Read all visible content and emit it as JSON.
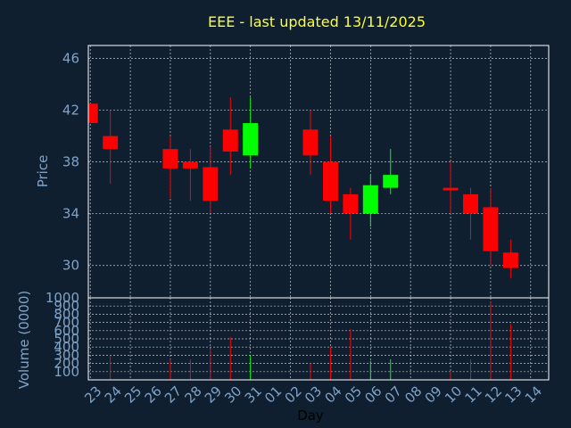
{
  "chart_data": {
    "type": "candlestick",
    "title": "EEE - last updated 13/11/2025",
    "xlabel": "Day",
    "colors": {
      "up": "#00ff00",
      "down": "#ff0000",
      "background": "#0f1f30",
      "title": "#ffff33",
      "tick": "#7fa3c8"
    },
    "x_tick_labels": [
      "23",
      "24",
      "25",
      "26",
      "27",
      "28",
      "29",
      "30",
      "31",
      "01",
      "02",
      "03",
      "04",
      "05",
      "06",
      "07",
      "08",
      "09",
      "10",
      "11",
      "12",
      "13",
      "14"
    ],
    "price_panel": {
      "ylabel": "Price",
      "ylim": [
        27.5,
        47
      ],
      "yticks": [
        30,
        34,
        38,
        42,
        46
      ],
      "grid": true
    },
    "volume_panel": {
      "ylabel": "Volume (0000)",
      "ylim": [
        0,
        1000
      ],
      "yticks": [
        100,
        200,
        300,
        400,
        500,
        600,
        700,
        800,
        900,
        1000
      ],
      "grid": true
    },
    "candles": [
      {
        "day": "23",
        "open": 42.5,
        "high": 42.5,
        "low": 41.0,
        "close": 41.0,
        "volume": 0
      },
      {
        "day": "24",
        "open": 40.0,
        "high": 42.0,
        "low": 36.3,
        "close": 39.0,
        "volume": 300
      },
      {
        "day": "27",
        "open": 39.0,
        "high": 40.0,
        "low": 35.2,
        "close": 37.5,
        "volume": 250
      },
      {
        "day": "28",
        "open": 38.0,
        "high": 39.0,
        "low": 35.0,
        "close": 37.5,
        "volume": 250
      },
      {
        "day": "29",
        "open": 37.6,
        "high": 39.2,
        "low": 34.0,
        "close": 35.0,
        "volume": 380
      },
      {
        "day": "30",
        "open": 40.5,
        "high": 43.0,
        "low": 37.0,
        "close": 38.8,
        "volume": 520
      },
      {
        "day": "31",
        "open": 38.5,
        "high": 43.0,
        "low": 37.5,
        "close": 41.0,
        "volume": 300
      },
      {
        "day": "03",
        "open": 40.5,
        "high": 42.0,
        "low": 37.0,
        "close": 38.5,
        "volume": 200
      },
      {
        "day": "04",
        "open": 38.0,
        "high": 40.0,
        "low": 34.0,
        "close": 35.0,
        "volume": 400
      },
      {
        "day": "05",
        "open": 35.5,
        "high": 36.0,
        "low": 32.0,
        "close": 34.0,
        "volume": 620
      },
      {
        "day": "06",
        "open": 34.0,
        "high": 37.0,
        "low": 33.0,
        "close": 36.2,
        "volume": 230
      },
      {
        "day": "07",
        "open": 36.0,
        "high": 39.0,
        "low": 35.5,
        "close": 37.0,
        "volume": 250
      },
      {
        "day": "10",
        "open": 36.0,
        "high": 38.0,
        "low": 34.0,
        "close": 35.8,
        "volume": 100
      },
      {
        "day": "11",
        "open": 35.5,
        "high": 36.0,
        "low": 32.0,
        "close": 34.0,
        "volume": 250
      },
      {
        "day": "12",
        "open": 34.5,
        "high": 36.0,
        "low": 30.0,
        "close": 31.1,
        "volume": 950
      },
      {
        "day": "13",
        "open": 31.0,
        "high": 32.0,
        "low": 29.0,
        "close": 29.8,
        "volume": 680
      }
    ]
  }
}
